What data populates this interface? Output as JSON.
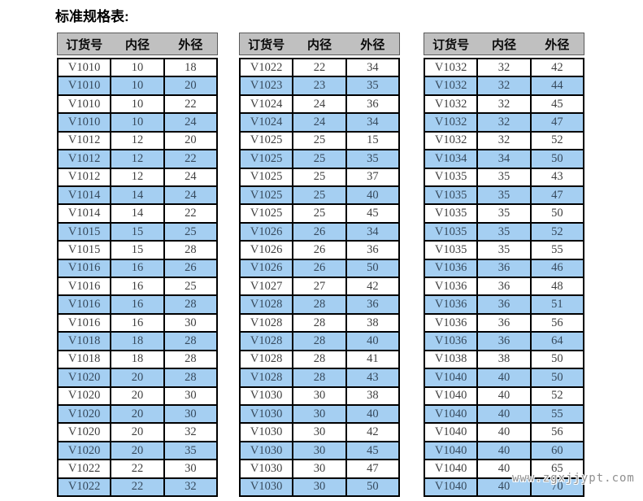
{
  "title": "标准规格表:",
  "watermark": "www.zgxjjypt.com",
  "columns": [
    "订货号",
    "内径",
    "外径"
  ],
  "colors": {
    "header_bg": "#c0c0c0",
    "row_alt_blue": "#a5cff2",
    "grid_border": "#000000",
    "watermark_gray": "#8f8f8f"
  },
  "tables": [
    {
      "rows": [
        [
          "V1010",
          "10",
          "18"
        ],
        [
          "V1010",
          "10",
          "20"
        ],
        [
          "V1010",
          "10",
          "22"
        ],
        [
          "V1010",
          "10",
          "24"
        ],
        [
          "V1012",
          "12",
          "20"
        ],
        [
          "V1012",
          "12",
          "22"
        ],
        [
          "V1012",
          "12",
          "24"
        ],
        [
          "V1014",
          "14",
          "24"
        ],
        [
          "V1014",
          "14",
          "22"
        ],
        [
          "V1015",
          "15",
          "25"
        ],
        [
          "V1015",
          "15",
          "28"
        ],
        [
          "V1016",
          "16",
          "26"
        ],
        [
          "V1016",
          "16",
          "25"
        ],
        [
          "V1016",
          "16",
          "28"
        ],
        [
          "V1016",
          "16",
          "30"
        ],
        [
          "V1018",
          "18",
          "28"
        ],
        [
          "V1018",
          "18",
          "28"
        ],
        [
          "V1020",
          "20",
          "28"
        ],
        [
          "V1020",
          "20",
          "30"
        ],
        [
          "V1020",
          "20",
          "30"
        ],
        [
          "V1020",
          "20",
          "32"
        ],
        [
          "V1020",
          "20",
          "35"
        ],
        [
          "V1022",
          "22",
          "30"
        ],
        [
          "V1022",
          "22",
          "32"
        ]
      ]
    },
    {
      "rows": [
        [
          "V1022",
          "22",
          "34"
        ],
        [
          "V1023",
          "23",
          "35"
        ],
        [
          "V1024",
          "24",
          "36"
        ],
        [
          "V1024",
          "24",
          "34"
        ],
        [
          "V1025",
          "25",
          "15"
        ],
        [
          "V1025",
          "25",
          "35"
        ],
        [
          "V1025",
          "25",
          "37"
        ],
        [
          "V1025",
          "25",
          "40"
        ],
        [
          "V1025",
          "25",
          "45"
        ],
        [
          "V1026",
          "26",
          "34"
        ],
        [
          "V1026",
          "26",
          "36"
        ],
        [
          "V1026",
          "26",
          "50"
        ],
        [
          "V1027",
          "27",
          "42"
        ],
        [
          "V1028",
          "28",
          "36"
        ],
        [
          "V1028",
          "28",
          "38"
        ],
        [
          "V1028",
          "28",
          "40"
        ],
        [
          "V1028",
          "28",
          "41"
        ],
        [
          "V1028",
          "28",
          "43"
        ],
        [
          "V1030",
          "30",
          "38"
        ],
        [
          "V1030",
          "30",
          "40"
        ],
        [
          "V1030",
          "30",
          "42"
        ],
        [
          "V1030",
          "30",
          "45"
        ],
        [
          "V1030",
          "30",
          "47"
        ],
        [
          "V1030",
          "30",
          "50"
        ]
      ]
    },
    {
      "rows": [
        [
          "V1032",
          "32",
          "42"
        ],
        [
          "V1032",
          "32",
          "44"
        ],
        [
          "V1032",
          "32",
          "45"
        ],
        [
          "V1032",
          "32",
          "47"
        ],
        [
          "V1032",
          "32",
          "52"
        ],
        [
          "V1034",
          "34",
          "50"
        ],
        [
          "V1035",
          "35",
          "43"
        ],
        [
          "V1035",
          "35",
          "47"
        ],
        [
          "V1035",
          "35",
          "50"
        ],
        [
          "V1035",
          "35",
          "52"
        ],
        [
          "V1035",
          "35",
          "55"
        ],
        [
          "V1036",
          "36",
          "46"
        ],
        [
          "V1036",
          "36",
          "48"
        ],
        [
          "V1036",
          "36",
          "51"
        ],
        [
          "V1036",
          "36",
          "56"
        ],
        [
          "V1036",
          "36",
          "64"
        ],
        [
          "V1038",
          "38",
          "50"
        ],
        [
          "V1040",
          "40",
          "50"
        ],
        [
          "V1040",
          "40",
          "52"
        ],
        [
          "V1040",
          "40",
          "55"
        ],
        [
          "V1040",
          "40",
          "56"
        ],
        [
          "V1040",
          "40",
          "60"
        ],
        [
          "V1040",
          "40",
          "65"
        ],
        [
          "V1040",
          "40",
          "70"
        ]
      ]
    }
  ]
}
